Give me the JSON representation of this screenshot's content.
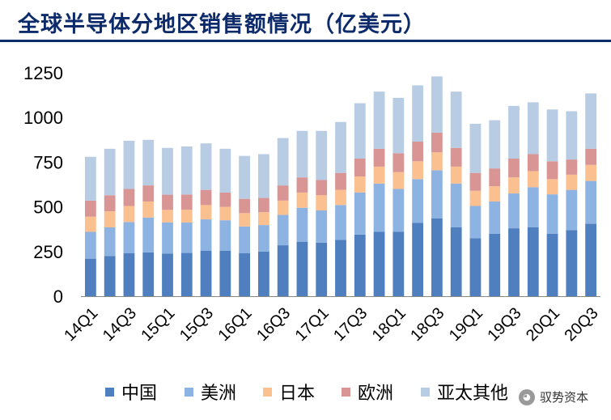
{
  "title": "全球半导体分地区销售额情况（亿美元）",
  "watermark": "驭势资本",
  "chart_data": {
    "type": "bar",
    "stacked": true,
    "title": "全球半导体分地区销售额情况（亿美元）",
    "xlabel": "",
    "ylabel": "",
    "ylim": [
      0,
      1250
    ],
    "yticks": [
      0,
      250,
      500,
      750,
      1000,
      1250
    ],
    "grid": false,
    "legend_position": "bottom",
    "categories": [
      "14Q1",
      "14Q2",
      "14Q3",
      "14Q4",
      "15Q1",
      "15Q2",
      "15Q3",
      "15Q4",
      "16Q1",
      "16Q2",
      "16Q3",
      "16Q4",
      "17Q1",
      "17Q2",
      "17Q3",
      "17Q4",
      "18Q1",
      "18Q2",
      "18Q3",
      "18Q4",
      "19Q1",
      "19Q2",
      "19Q3",
      "19Q4",
      "20Q1",
      "20Q2",
      "20Q3"
    ],
    "xtick_labels": [
      "14Q1",
      "",
      "14Q3",
      "",
      "15Q1",
      "",
      "15Q3",
      "",
      "16Q1",
      "",
      "16Q3",
      "",
      "17Q1",
      "",
      "17Q3",
      "",
      "18Q1",
      "",
      "18Q3",
      "",
      "19Q1",
      "",
      "19Q3",
      "",
      "20Q1",
      "",
      "20Q3"
    ],
    "series": [
      {
        "name": "中国",
        "color": "#4f7fbf",
        "values": [
          210,
          225,
          240,
          245,
          238,
          242,
          255,
          255,
          240,
          250,
          285,
          305,
          300,
          315,
          345,
          360,
          360,
          410,
          435,
          385,
          325,
          350,
          380,
          385,
          350,
          370,
          405
        ]
      },
      {
        "name": "美洲",
        "color": "#8db3e2",
        "values": [
          150,
          160,
          175,
          195,
          175,
          170,
          175,
          170,
          150,
          148,
          170,
          190,
          180,
          195,
          235,
          270,
          240,
          245,
          270,
          245,
          180,
          180,
          195,
          225,
          220,
          225,
          240
        ]
      },
      {
        "name": "日本",
        "color": "#fac090",
        "values": [
          85,
          90,
          90,
          90,
          70,
          72,
          80,
          75,
          75,
          72,
          80,
          85,
          85,
          85,
          90,
          95,
          95,
          100,
          100,
          95,
          85,
          85,
          90,
          90,
          85,
          85,
          90
        ]
      },
      {
        "name": "欧洲",
        "color": "#d99594",
        "values": [
          90,
          90,
          95,
          90,
          85,
          85,
          85,
          80,
          80,
          80,
          85,
          85,
          85,
          95,
          100,
          100,
          105,
          110,
          110,
          105,
          100,
          100,
          105,
          95,
          100,
          85,
          90
        ]
      },
      {
        "name": "亚太其他",
        "color": "#b8cce4",
        "values": [
          245,
          260,
          270,
          255,
          262,
          269,
          260,
          245,
          240,
          245,
          265,
          260,
          275,
          285,
          310,
          320,
          310,
          315,
          315,
          315,
          275,
          270,
          295,
          290,
          290,
          270,
          310
        ]
      }
    ]
  }
}
